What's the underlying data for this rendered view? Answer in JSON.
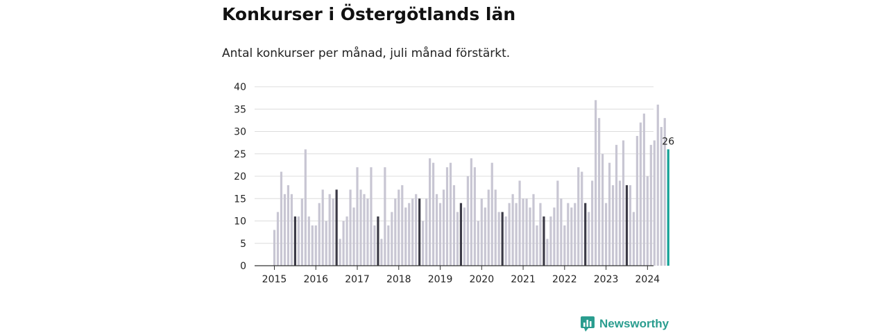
{
  "title": "Konkurser i Östergötlands län",
  "subtitle": "Antal konkurser per månad, juli månad förstärkt.",
  "brand": {
    "name": "Newsworthy",
    "icon": "bar-chart-speech-bubble-icon",
    "color": "#2a9d8f"
  },
  "colors": {
    "bar": "#c8c6d3",
    "july": "#3b3a46",
    "latest": "#14a196",
    "grid": "#dcdcdc",
    "axis": "#333333"
  },
  "chart_data": {
    "type": "bar",
    "title": "Konkurser i Östergötlands län",
    "subtitle": "Antal konkurser per månad, juli månad förstärkt.",
    "xlabel": "",
    "ylabel": "",
    "ylim": [
      0,
      40
    ],
    "yticks": [
      0,
      5,
      10,
      15,
      20,
      25,
      30,
      35,
      40
    ],
    "grid": true,
    "start": "2015-01",
    "highlight_month": "juli",
    "x_tick_labels": [
      "2015",
      "2016",
      "2017",
      "2018",
      "2019",
      "2020",
      "2021",
      "2022",
      "2023",
      "2024"
    ],
    "values": [
      8,
      12,
      21,
      16,
      18,
      16,
      11,
      11,
      15,
      26,
      11,
      9,
      9,
      14,
      17,
      10,
      16,
      15,
      17,
      6,
      10,
      11,
      17,
      13,
      22,
      17,
      16,
      15,
      22,
      9,
      11,
      6,
      22,
      9,
      12,
      15,
      17,
      18,
      13,
      14,
      15,
      16,
      15,
      10,
      15,
      24,
      23,
      16,
      14,
      17,
      22,
      23,
      18,
      12,
      14,
      13,
      20,
      24,
      22,
      10,
      15,
      13,
      17,
      23,
      17,
      12,
      12,
      11,
      14,
      16,
      14,
      19,
      15,
      15,
      13,
      16,
      9,
      14,
      11,
      6,
      11,
      13,
      19,
      15,
      9,
      14,
      13,
      14,
      22,
      21,
      14,
      12,
      19,
      37,
      33,
      25,
      14,
      23,
      18,
      27,
      19,
      28,
      18,
      18,
      12,
      29,
      32,
      34,
      20,
      27,
      28,
      36,
      31,
      33,
      26
    ],
    "latest_label": "26"
  }
}
